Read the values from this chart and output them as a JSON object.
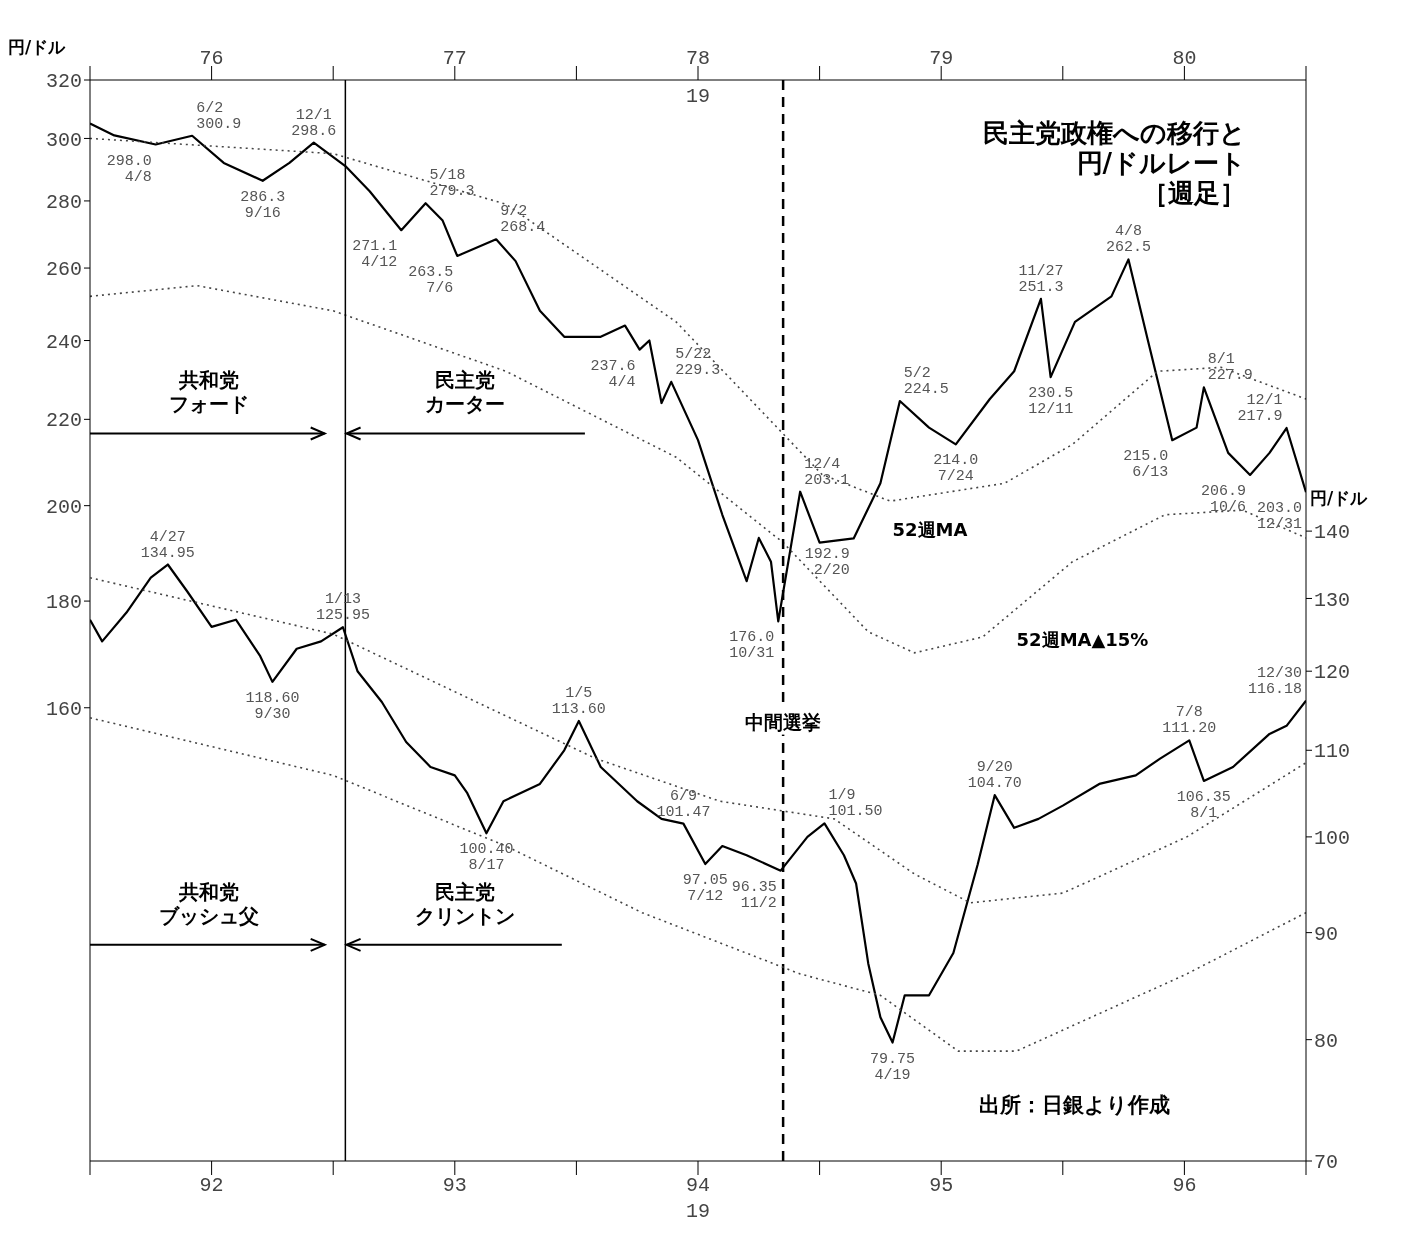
{
  "chart_data": [
    {
      "type": "line",
      "title": "民主党政権への移行と円/ドルレート",
      "subtitle": "［週足］",
      "ylabel": "円/ドル",
      "xlabel": "19",
      "xlim": [
        76,
        81
      ],
      "xticks": [
        {
          "value": 76,
          "label": null
        },
        {
          "value": 76.5,
          "label": "76"
        },
        {
          "value": 77,
          "label": null
        },
        {
          "value": 77.5,
          "label": "77"
        },
        {
          "value": 78,
          "label": null
        },
        {
          "value": 78.5,
          "label": "78"
        },
        {
          "value": 79,
          "label": null
        },
        {
          "value": 79.5,
          "label": "79"
        },
        {
          "value": 80,
          "label": null
        },
        {
          "value": 80.5,
          "label": "80"
        },
        {
          "value": 81,
          "label": null
        }
      ],
      "ylim": [
        97,
        320
      ],
      "yticks": [
        160,
        180,
        200,
        220,
        240,
        260,
        280,
        300,
        320
      ],
      "log": true,
      "marker": "none",
      "series": [
        {
          "color": "#000000",
          "x": [
            76.0,
            76.1,
            76.27,
            76.42,
            76.55,
            76.71,
            76.82,
            76.92,
            77.05,
            77.15,
            77.28,
            77.38,
            77.45,
            77.51,
            77.67,
            77.75,
            77.85,
            77.95,
            78.1,
            78.2,
            78.26,
            78.3,
            78.35,
            78.39,
            78.5,
            78.6,
            78.7,
            78.75,
            78.8,
            78.83,
            78.92,
            79.0,
            79.14,
            79.25,
            79.33,
            79.45,
            79.56,
            79.7,
            79.8,
            79.91,
            79.95,
            80.05,
            80.2,
            80.27,
            80.35,
            80.45,
            80.55,
            80.58,
            80.68,
            80.77,
            80.85,
            80.92,
            81.0
          ],
          "values": [
            305,
            301,
            298.0,
            300.9,
            292,
            286.3,
            292,
            298.6,
            291,
            283,
            271.1,
            279.3,
            274,
            263.5,
            268.4,
            262,
            248,
            241,
            241,
            244,
            237.6,
            240,
            224,
            229.3,
            215,
            198,
            184,
            193,
            188,
            176.0,
            203.1,
            192,
            192.9,
            205,
            224.5,
            218,
            214.0,
            225,
            232,
            251.3,
            230.5,
            245,
            252,
            262.5,
            240,
            215.0,
            218,
            227.9,
            212,
            206.9,
            212,
            217.9,
            203.0
          ]
        },
        {
          "color": "#444444",
          "line_style": "dotted",
          "x": [
            76.0,
            77.0,
            77.71,
            78.41,
            79.01,
            79.29,
            79.76,
            80.04,
            80.39,
            80.65,
            81.0
          ],
          "values": [
            300,
            295,
            279,
            245,
            207,
            201,
            205,
            214,
            232,
            233,
            225
          ]
        },
        {
          "color": "#444444",
          "line_style": "dotted",
          "x": [
            76.0,
            76.44,
            77.0,
            77.71,
            78.41,
            78.85,
            79.2,
            79.39,
            79.67,
            80.04,
            80.42,
            80.74,
            81.0
          ],
          "values": [
            252,
            255,
            248,
            232,
            211,
            192,
            174,
            170,
            173,
            188,
            198,
            199,
            193
          ]
        }
      ],
      "annotations": [
        "共和党",
        "フォード",
        "民主党",
        "カーター",
        "52週MA",
        "52週MA▲15%",
        {
          "text": "298.0\n4/8",
          "x": 76.27,
          "y": 298.0
        },
        {
          "text": "6/2\n300.9",
          "x": 76.42,
          "y": 300.9
        },
        {
          "text": "286.3\n9/16",
          "x": 76.71,
          "y": 286.3
        },
        {
          "text": "12/1\n298.6",
          "x": 76.92,
          "y": 298.6
        },
        {
          "text": "271.1\n4/12",
          "x": 77.28,
          "y": 271.1
        },
        {
          "text": "5/18\n279.3",
          "x": 77.38,
          "y": 279.3
        },
        {
          "text": "263.5\n7/6",
          "x": 77.51,
          "y": 263.5
        },
        {
          "text": "9/2\n268.4",
          "x": 77.67,
          "y": 268.4
        },
        {
          "text": "237.6\n4/4",
          "x": 78.26,
          "y": 237.6
        },
        {
          "text": "5/22\n229.3",
          "x": 78.39,
          "y": 229.3
        },
        {
          "text": "176.0\n10/31",
          "x": 78.83,
          "y": 176.0
        },
        {
          "text": "12/4\n203.1",
          "x": 78.92,
          "y": 203.1
        },
        {
          "text": "192.9\n2/20",
          "x": 79.14,
          "y": 192.9
        },
        {
          "text": "5/2\n224.5",
          "x": 79.33,
          "y": 224.5
        },
        {
          "text": "214.0\n7/24",
          "x": 79.56,
          "y": 214.0
        },
        {
          "text": "11/27\n251.3",
          "x": 79.91,
          "y": 251.3
        },
        {
          "text": "230.5\n12/11",
          "x": 79.95,
          "y": 230.5
        },
        {
          "text": "4/8\n262.5",
          "x": 80.27,
          "y": 262.5
        },
        {
          "text": "215.0\n6/13",
          "x": 80.45,
          "y": 215.0
        },
        {
          "text": "8/1\n227.9",
          "x": 80.58,
          "y": 227.9
        },
        {
          "text": "206.9\n10/6",
          "x": 80.77,
          "y": 206.9
        },
        {
          "text": "12/1\n217.9",
          "x": 80.92,
          "y": 217.9
        },
        {
          "text": "203.0\n12/31",
          "x": 81.0,
          "y": 203.0
        }
      ]
    },
    {
      "type": "line",
      "ylabel": "円/ドル",
      "xlabel": "19",
      "xlim": [
        92,
        97
      ],
      "xticks": [
        {
          "value": 92,
          "label": null
        },
        {
          "value": 92.5,
          "label": "92"
        },
        {
          "value": 93,
          "label": null
        },
        {
          "value": 93.5,
          "label": "93"
        },
        {
          "value": 94,
          "label": null
        },
        {
          "value": 94.5,
          "label": "94"
        },
        {
          "value": 95,
          "label": null
        },
        {
          "value": 95.5,
          "label": "95"
        },
        {
          "value": 96,
          "label": null
        },
        {
          "value": 96.5,
          "label": "96"
        },
        {
          "value": 97,
          "label": null
        }
      ],
      "ylim": [
        70,
        230
      ],
      "yticks": [
        70,
        80,
        90,
        100,
        110,
        120,
        130,
        140
      ],
      "log": true,
      "marker": "none",
      "series": [
        {
          "color": "#000000",
          "x": [
            92.0,
            92.05,
            92.15,
            92.25,
            92.32,
            92.4,
            92.5,
            92.6,
            92.7,
            92.75,
            92.85,
            92.95,
            93.04,
            93.1,
            93.2,
            93.3,
            93.4,
            93.5,
            93.55,
            93.63,
            93.7,
            93.85,
            93.95,
            94.01,
            94.1,
            94.25,
            94.35,
            94.44,
            94.53,
            94.6,
            94.7,
            94.84,
            94.95,
            95.02,
            95.1,
            95.15,
            95.2,
            95.25,
            95.3,
            95.35,
            95.45,
            95.55,
            95.65,
            95.72,
            95.8,
            95.9,
            96.0,
            96.15,
            96.3,
            96.4,
            96.52,
            96.58,
            96.7,
            96.85,
            96.92,
            97.0
          ],
          "values": [
            127,
            124,
            128,
            133,
            134.95,
            131,
            126,
            127,
            122,
            118.6,
            123,
            124,
            125.95,
            120,
            116,
            111,
            108,
            107,
            105,
            100.4,
            104,
            106,
            110,
            113.6,
            108,
            104,
            102,
            101.47,
            97.05,
            99,
            98,
            96.35,
            100,
            101.5,
            98,
            95,
            87,
            82,
            79.75,
            84,
            84,
            88,
            97,
            104.7,
            101,
            102,
            103.5,
            106,
            107,
            109,
            111.2,
            106.35,
            108,
            112,
            113,
            116.18
          ]
        },
        {
          "color": "#444444",
          "line_style": "dotted",
          "x": [
            92.0,
            93.0,
            94.08,
            94.59,
            95.06,
            95.39,
            95.62,
            96.0,
            96.51,
            97.0
          ],
          "values": [
            133,
            125,
            109,
            104,
            102,
            96,
            93,
            94,
            100,
            108.5
          ]
        },
        {
          "color": "#444444",
          "line_style": "dotted",
          "x": [
            92.0,
            93.0,
            93.71,
            94.27,
            94.92,
            95.25,
            95.57,
            95.81,
            96.51,
            97.0
          ],
          "values": [
            114,
            107,
            99,
            92,
            86,
            84,
            79,
            79,
            86,
            92
          ]
        }
      ],
      "ref_lines": [
        {
          "axis": "x",
          "value": 93.05,
          "label": null,
          "line_style": "solid"
        },
        {
          "axis": "x",
          "value": 94.85,
          "label": "中間選挙",
          "line_style": "dashed"
        }
      ],
      "annotations": [
        "出所：日銀より作成",
        "共和党",
        "ブッシュ父",
        "民主党",
        "クリントン",
        {
          "text": "4/27\n134.95",
          "x": 92.32,
          "y": 134.95
        },
        {
          "text": "118.60\n9/30",
          "x": 92.75,
          "y": 118.6
        },
        {
          "text": "1/13\n125.95",
          "x": 93.04,
          "y": 125.95
        },
        {
          "text": "100.40\n8/17",
          "x": 93.63,
          "y": 100.4
        },
        {
          "text": "1/5\n113.60",
          "x": 94.01,
          "y": 113.6
        },
        {
          "text": "6/9\n101.47",
          "x": 94.44,
          "y": 101.47
        },
        {
          "text": "97.05\n7/12",
          "x": 94.53,
          "y": 97.05
        },
        {
          "text": "96.35\n11/2",
          "x": 94.84,
          "y": 96.35
        },
        {
          "text": "1/9\n101.50",
          "x": 95.02,
          "y": 101.5
        },
        {
          "text": "79.75\n4/19",
          "x": 95.3,
          "y": 79.75
        },
        {
          "text": "9/20\n104.70",
          "x": 95.72,
          "y": 104.7
        },
        {
          "text": "7/8\n111.20",
          "x": 96.52,
          "y": 111.2
        },
        {
          "text": "106.35\n8/1",
          "x": 96.58,
          "y": 106.35
        },
        {
          "text": "12/30\n116.18",
          "x": 97.0,
          "y": 116.18
        }
      ]
    }
  ]
}
